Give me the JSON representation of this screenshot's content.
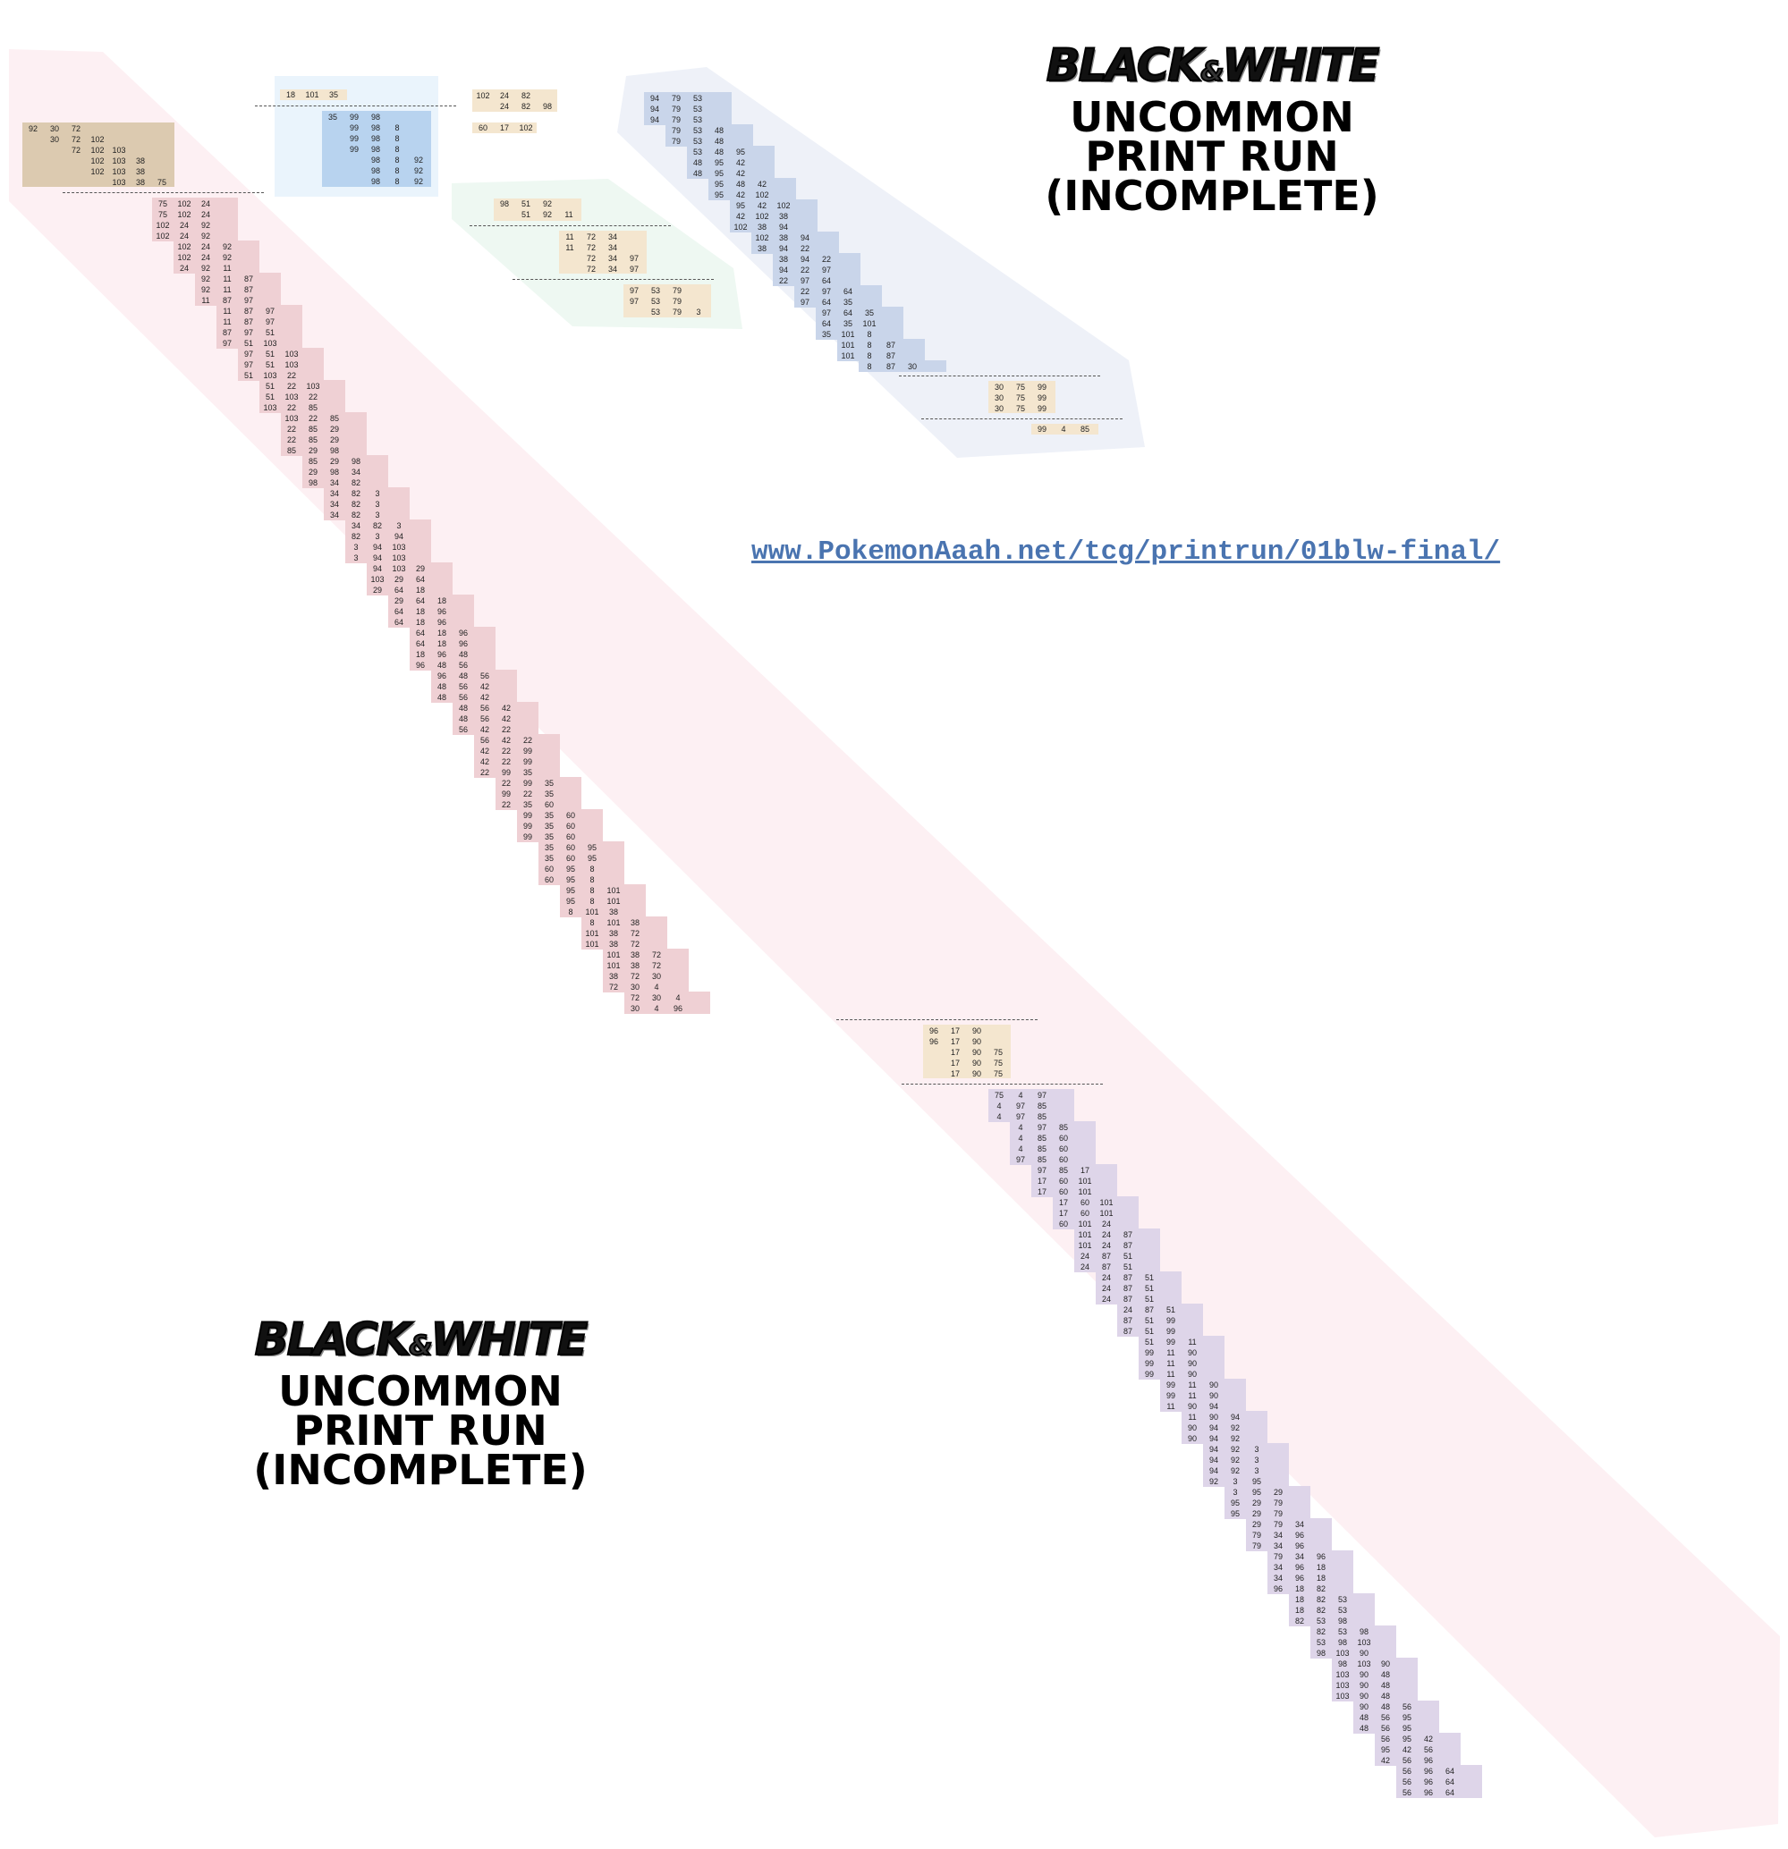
{
  "logo_top": {
    "brand_left": "BLACK",
    "brand_amp": "&",
    "brand_right": "WHITE",
    "line1": "UNCOMMON",
    "line2": "PRINT RUN",
    "line3": "(INCOMPLETE)"
  },
  "logo_bottom": {
    "brand_left": "BLACK",
    "brand_amp": "&",
    "brand_right": "WHITE",
    "line1": "UNCOMMON",
    "line2": "PRINT RUN",
    "line3": "(INCOMPLETE)"
  },
  "url": "www.PokemonAaah.net/tcg/printrun/01blw-final/",
  "colors": {
    "tan": "#dccab0",
    "pink": "#efd0d4",
    "purple": "#ded5e9",
    "blue": "#b8d3ef",
    "steel": "#c9d5ea",
    "cream": "#f4e6cf",
    "band_pink": "#fdf0f3",
    "band_steel": "#eef1f8",
    "band_green": "#eef8f2",
    "band_blue": "#eaf4fc"
  },
  "groups": {
    "tan_start": {
      "cols": [
        "92",
        "30",
        "72",
        "102",
        "103",
        "38",
        "75"
      ],
      "rows": [
        "92 30 72",
        "30 72 102",
        "72 102 103",
        "102 103 38",
        "102 103 38",
        "103 38 75"
      ]
    },
    "blue_top": {
      "header": "18 101 35",
      "rows": [
        "35 99 98",
        "99 98 8",
        "99 98 8",
        "99 98 8",
        "98 8 92",
        "98 8 92",
        "98 8 92"
      ]
    },
    "cream_top": {
      "rows": [
        "102 24 82",
        "24 82 98"
      ],
      "extra": "60 17 102"
    },
    "green_group": {
      "a": [
        "98 51 92",
        "51 92 11"
      ],
      "b": [
        "11 72 34",
        "11 72 34",
        "72 34 97",
        "72 34 97"
      ],
      "c": [
        "97 53 79",
        "97 53 79",
        "53 79 3"
      ]
    },
    "steel_diag": [
      "94 79 53",
      "94 79 53",
      "94 79 53",
      "79 53 48",
      "79 53 48",
      "53 48 95",
      "48 95 42",
      "48 95 42",
      "95 48 42",
      "95 42 102",
      "95 42 102",
      "42 102 38",
      "102 38 94",
      "102 38 94",
      "38 94 22",
      "38 94 22",
      "94 22 97",
      "22 97 64",
      "22 97 64",
      "97 64 35",
      "97 64 35",
      "64 35 101",
      "35 101 8",
      "101 8 87",
      "101 8 87",
      "8 87 30"
    ],
    "steel_tail": {
      "a": [
        "30 75 99",
        "30 75 99",
        "30 75 99"
      ],
      "b": "99 4 85"
    },
    "pink_diag": [
      "75 102 24",
      "75 102 24",
      "102 24 92",
      "102 24 92",
      "102 24 92",
      "102 24 92",
      "24 92 11",
      "92 11 87",
      "92 11 87",
      "11 87 97",
      "11 87 97",
      "11 87 97",
      "87 97 51",
      "97 51 103",
      "97 51 103",
      "97 51 103",
      "51 103 22",
      "51 22 103",
      "51 103 22",
      "103 22 85",
      "103 22 85",
      "22 85 29",
      "22 85 29",
      "85 29 98",
      "85 29 98",
      "29 98 34",
      "98 34 82",
      "34 82 3",
      "34 82 3",
      "34 82 3",
      "34 82 3",
      "82 3 94",
      "3 94 103",
      "3 94 103",
      "94 103 29",
      "103 29 64",
      "29 64 18",
      "29 64 18",
      "64 18 96",
      "64 18 96",
      "64 18 96",
      "64 18 96",
      "18 96 48",
      "96 48 56",
      "96 48 56",
      "48 56 42",
      "48 56 42",
      "48 56 42",
      "48 56 42",
      "56 42 22",
      "56 42 22",
      "42 22 99",
      "42 22 99",
      "22 99 35",
      "22 99 35",
      "99 22 35",
      "22 35 60",
      "99 35 60",
      "99 35 60",
      "99 35 60",
      "35 60 95",
      "35 60 95",
      "60 95 8",
      "60 95 8",
      "95 8 101",
      "95 8 101",
      "8 101 38",
      "8 101 38",
      "101 38 72",
      "101 38 72",
      "101 38 72",
      "101 38 72",
      "38 72 30",
      "72 30 4",
      "72 30 4",
      "30 4 96"
    ],
    "cream_mid": [
      "96 17 90",
      "96 17 90",
      "17 90 75",
      "17 90 75",
      "17 90 75"
    ],
    "purple_diag": [
      "75 4 97",
      "4 97 85",
      "4 97 85",
      "4 97 85",
      "4 85 60",
      "4 85 60",
      "97 85 60",
      "97 85 17",
      "17 60 101",
      "17 60 101",
      "17 60 101",
      "17 60 101",
      "60 101 24",
      "101 24 87",
      "101 24 87",
      "24 87 51",
      "24 87 51",
      "24 87 51",
      "24 87 51",
      "24 87 51",
      "24 87 51",
      "87 51 99",
      "87 51 99",
      "51 99 11",
      "99 11 90",
      "99 11 90",
      "99 11 90",
      "99 11 90",
      "99 11 90",
      "11 90 94",
      "11 90 94",
      "90 94 92",
      "90 94 92",
      "94 92 3",
      "94 92 3",
      "94 92 3",
      "92 3 95",
      "3 95 29",
      "95 29 79",
      "95 29 79",
      "29 79 34",
      "79 34 96",
      "79 34 96",
      "79 34 96",
      "34 96 18",
      "34 96 18",
      "96 18 82",
      "18 82 53",
      "18 82 53",
      "82 53 98",
      "82 53 98",
      "53 98 103",
      "98 103 90",
      "98 103 90",
      "103 90 48",
      "103 90 48",
      "103 90 48",
      "90 48 56",
      "48 56 95",
      "48 56 95",
      "56 95 42",
      "95 42 56",
      "42 56 96",
      "56 96 64",
      "56 96 64",
      "56 96 64"
    ]
  }
}
